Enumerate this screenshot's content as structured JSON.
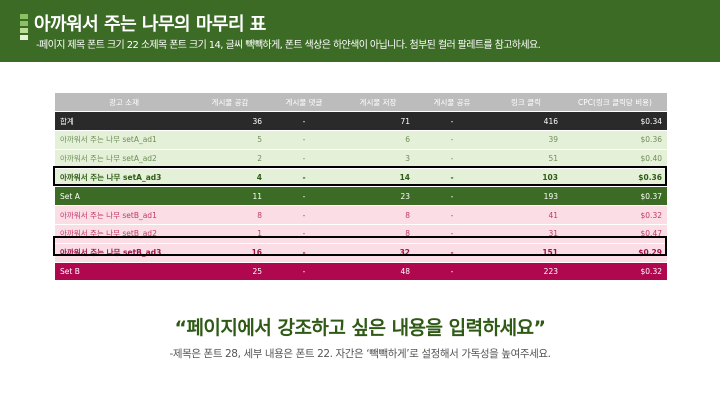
{
  "header": {
    "title": "아까워서 주는 나무의 마무리 표",
    "subtitle": "-페이지 제목 폰트 크기 22 소제목 폰트 크기 14, 글씨 빽빽하게, 폰트 색상은 하얀색이 아닙니다. 첨부된 컬러 팔레트를 참고하세요.",
    "icon": "stacked-bars-icon",
    "icon_colors": [
      "#8cc063",
      "#8cc063",
      "#b9dc97",
      "#e5f2d8"
    ]
  },
  "colors": {
    "header_bg": "#3c6b25",
    "green_light": "#e4f0d8",
    "green_dark": "#3c6b25",
    "pink_light": "#fbdde6",
    "pink_dark": "#b0084f",
    "total_bg": "#2a2a2a"
  },
  "table": {
    "headers": [
      "광고 소재",
      "게시물 공감",
      "게시물 댓글",
      "게시물 저장",
      "게시물 공유",
      "링크 클릭",
      "CPC(링크 클릭당 비용)"
    ],
    "rows": [
      {
        "style": "total",
        "cells": [
          "합계",
          "36",
          "-",
          "71",
          "-",
          "416",
          "$0.34"
        ]
      },
      {
        "style": "green",
        "cells": [
          "아까워서 주는 나무 setA_ad1",
          "5",
          "-",
          "6",
          "-",
          "39",
          "$0.36"
        ]
      },
      {
        "style": "green",
        "cells": [
          "아까워서 주는 나무  setA_ad2",
          "2",
          "-",
          "3",
          "-",
          "51",
          "$0.40"
        ]
      },
      {
        "style": "green-hl",
        "cells": [
          "아까워서 주는 나무 setA_ad3",
          "4",
          "-",
          "14",
          "-",
          "103",
          "$0.36"
        ]
      },
      {
        "style": "green-sum",
        "cells": [
          "Set A",
          "11",
          "-",
          "23",
          "-",
          "193",
          "$0.37"
        ]
      },
      {
        "style": "pink",
        "cells": [
          "아까워서 주는 나무 setB_ad1",
          "8",
          "-",
          "8",
          "-",
          "41",
          "$0.32"
        ]
      },
      {
        "style": "pink",
        "cells": [
          "아까워서 주는 나무 setB_ad2",
          "1",
          "-",
          "8",
          "-",
          "31",
          "$0.47"
        ]
      },
      {
        "style": "pink-hl",
        "cells": [
          "아까워서 주는 나무 setB_ad3",
          "16",
          "-",
          "32",
          "-",
          "151",
          "$0.29"
        ]
      },
      {
        "style": "pink-sum",
        "cells": [
          "Set B",
          "25",
          "-",
          "48",
          "-",
          "223",
          "$0.32"
        ]
      }
    ]
  },
  "quote": "“페이지에서 강조하고 싶은 내용을 입력하세요”",
  "note": "-제목은 폰트 28, 세부 내용은 폰트 22. 자간은 ‘빽빽하게’로 설정해서 가독성을 높여주세요."
}
